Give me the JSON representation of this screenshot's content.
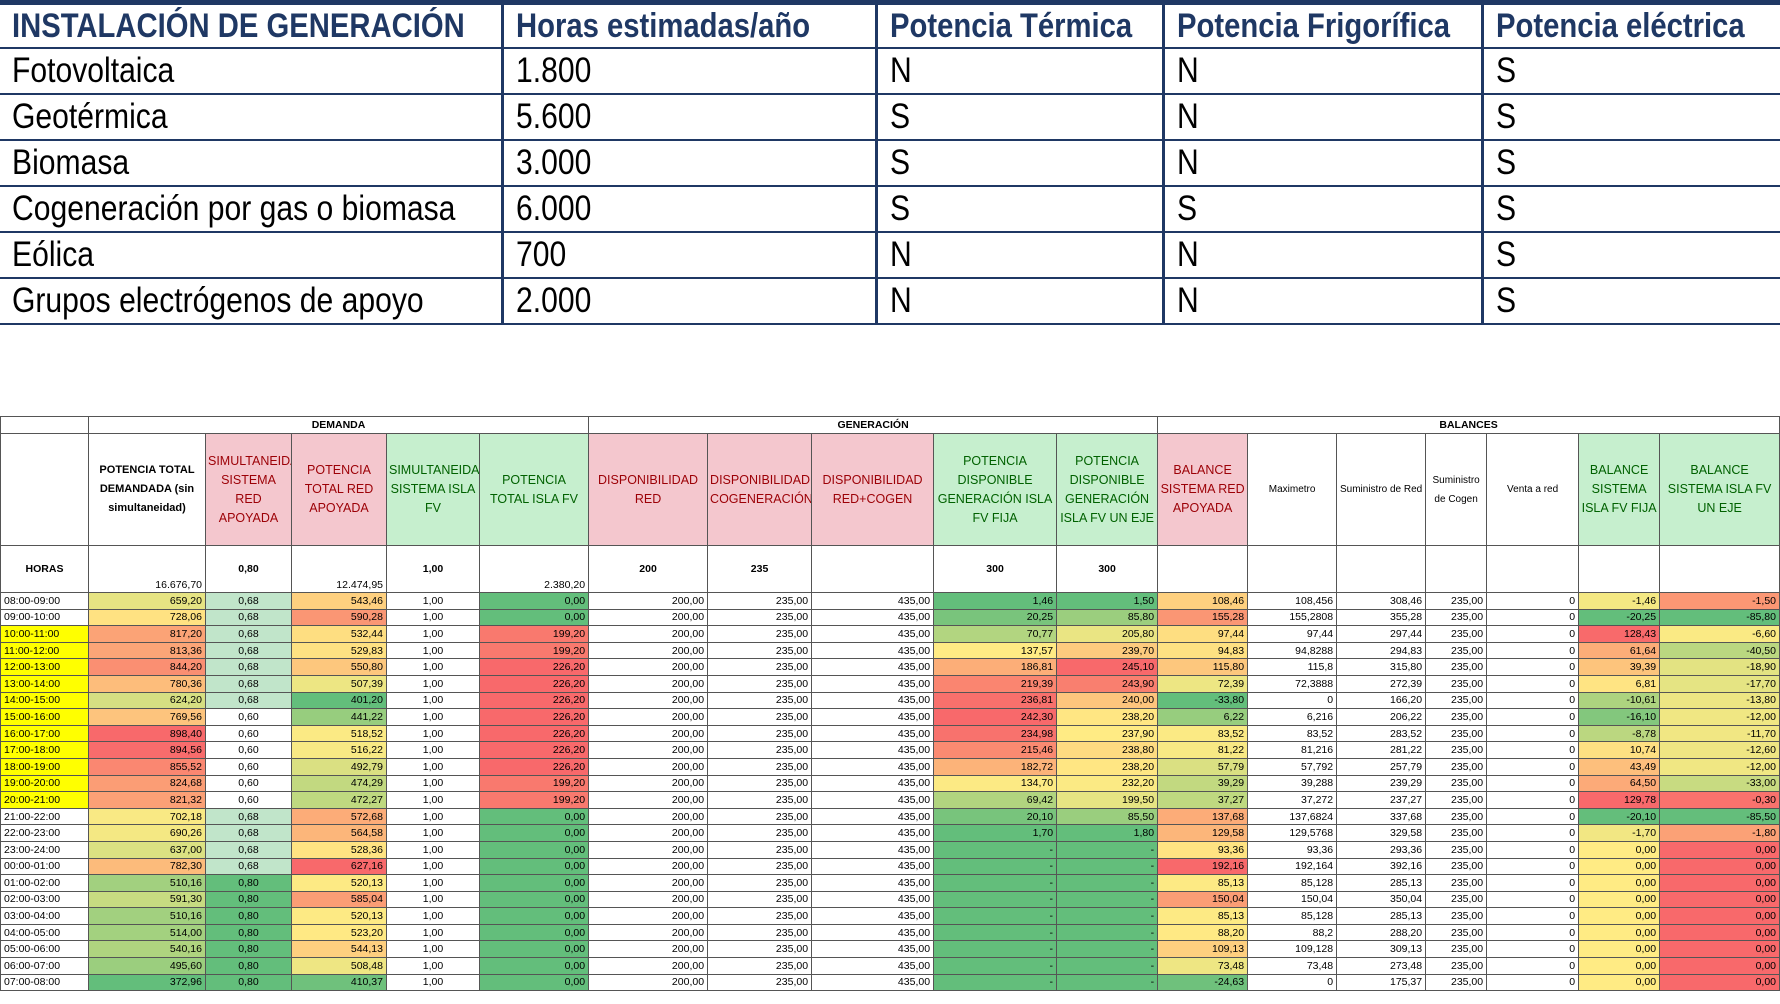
{
  "generation_table": {
    "headers": [
      "INSTALACIÓN DE GENERACIÓN",
      "Horas estimadas/año",
      "Potencia Térmica",
      "Potencia Frigorífica",
      "Potencia eléctrica"
    ],
    "rows": [
      [
        "Fotovoltaica",
        "1.800",
        "N",
        "N",
        "S"
      ],
      [
        "Geotérmica",
        "5.600",
        "S",
        "N",
        "S"
      ],
      [
        "Biomasa",
        "3.000",
        "S",
        "N",
        "S"
      ],
      [
        "Cogeneración por gas o biomasa",
        "6.000",
        "S",
        "S",
        "S"
      ],
      [
        "Eólica",
        "700",
        "N",
        "N",
        "S"
      ],
      [
        "Grupos electrógenos de apoyo",
        "2.000",
        "N",
        "N",
        "S"
      ]
    ]
  },
  "balance_table": {
    "groups": [
      "DEMANDA",
      "GENERACIÓN",
      "BALANCES"
    ],
    "headers": [
      "POTENCIA TOTAL DEMANDADA (sin simultaneidad)",
      "SIMULTANEIDAD SISTEMA RED APOYADA",
      "POTENCIA TOTAL RED APOYADA",
      "SIMULTANEIDAD SISTEMA ISLA FV",
      "POTENCIA TOTAL ISLA FV",
      "DISPONIBILIDAD RED",
      "DISPONIBILIDAD COGENERACIÓN",
      "DISPONIBILIDAD RED+COGEN",
      "POTENCIA DISPONIBLE GENERACIÓN ISLA FV FIJA",
      "POTENCIA DISPONIBLE GENERACIÓN ISLA FV UN EJE",
      "BALANCE SISTEMA RED APOYADA",
      "Maximetro",
      "Suministro de Red",
      "Suministro de Cogen",
      "Venta a red",
      "BALANCE SISTEMA ISLA FV FIJA",
      "BALANCE SISTEMA ISLA FV UN EJE"
    ],
    "params_label": "HORAS",
    "params": [
      "16.676,70",
      "0,80",
      "12.474,95",
      "1,00",
      "2.380,20",
      "200",
      "235",
      null,
      "300",
      "300",
      null,
      null,
      null,
      null,
      null,
      null,
      null
    ],
    "rows": [
      [
        "08:00-09:00",
        "659,20",
        "0,68",
        "543,46",
        "1,00",
        "0,00",
        "200,00",
        "235,00",
        "435,00",
        "1,46",
        "1,50",
        "108,46",
        "108,456",
        "308,46",
        "235,00",
        "0",
        "-1,46",
        "-1,50"
      ],
      [
        "09:00-10:00",
        "728,06",
        "0,68",
        "590,28",
        "1,00",
        "0,00",
        "200,00",
        "235,00",
        "435,00",
        "20,25",
        "85,80",
        "155,28",
        "155,2808",
        "355,28",
        "235,00",
        "0",
        "-20,25",
        "-85,80"
      ],
      [
        "10:00-11:00",
        "817,20",
        "0,68",
        "532,44",
        "1,00",
        "199,20",
        "200,00",
        "235,00",
        "435,00",
        "70,77",
        "205,80",
        "97,44",
        "97,44",
        "297,44",
        "235,00",
        "0",
        "128,43",
        "-6,60"
      ],
      [
        "11:00-12:00",
        "813,36",
        "0,68",
        "529,83",
        "1,00",
        "199,20",
        "200,00",
        "235,00",
        "435,00",
        "137,57",
        "239,70",
        "94,83",
        "94,8288",
        "294,83",
        "235,00",
        "0",
        "61,64",
        "-40,50"
      ],
      [
        "12:00-13:00",
        "844,20",
        "0,68",
        "550,80",
        "1,00",
        "226,20",
        "200,00",
        "235,00",
        "435,00",
        "186,81",
        "245,10",
        "115,80",
        "115,8",
        "315,80",
        "235,00",
        "0",
        "39,39",
        "-18,90"
      ],
      [
        "13:00-14:00",
        "780,36",
        "0,68",
        "507,39",
        "1,00",
        "226,20",
        "200,00",
        "235,00",
        "435,00",
        "219,39",
        "243,90",
        "72,39",
        "72,3888",
        "272,39",
        "235,00",
        "0",
        "6,81",
        "-17,70"
      ],
      [
        "14:00-15:00",
        "624,20",
        "0,68",
        "401,20",
        "1,00",
        "226,20",
        "200,00",
        "235,00",
        "435,00",
        "236,81",
        "240,00",
        "-33,80",
        "0",
        "166,20",
        "235,00",
        "0",
        "-10,61",
        "-13,80"
      ],
      [
        "15:00-16:00",
        "769,56",
        "0,60",
        "441,22",
        "1,00",
        "226,20",
        "200,00",
        "235,00",
        "435,00",
        "242,30",
        "238,20",
        "6,22",
        "6,216",
        "206,22",
        "235,00",
        "0",
        "-16,10",
        "-12,00"
      ],
      [
        "16:00-17:00",
        "898,40",
        "0,60",
        "518,52",
        "1,00",
        "226,20",
        "200,00",
        "235,00",
        "435,00",
        "234,98",
        "237,90",
        "83,52",
        "83,52",
        "283,52",
        "235,00",
        "0",
        "-8,78",
        "-11,70"
      ],
      [
        "17:00-18:00",
        "894,56",
        "0,60",
        "516,22",
        "1,00",
        "226,20",
        "200,00",
        "235,00",
        "435,00",
        "215,46",
        "238,80",
        "81,22",
        "81,216",
        "281,22",
        "235,00",
        "0",
        "10,74",
        "-12,60"
      ],
      [
        "18:00-19:00",
        "855,52",
        "0,60",
        "492,79",
        "1,00",
        "226,20",
        "200,00",
        "235,00",
        "435,00",
        "182,72",
        "238,20",
        "57,79",
        "57,792",
        "257,79",
        "235,00",
        "0",
        "43,49",
        "-12,00"
      ],
      [
        "19:00-20:00",
        "824,68",
        "0,60",
        "474,29",
        "1,00",
        "199,20",
        "200,00",
        "235,00",
        "435,00",
        "134,70",
        "232,20",
        "39,29",
        "39,288",
        "239,29",
        "235,00",
        "0",
        "64,50",
        "-33,00"
      ],
      [
        "20:00-21:00",
        "821,32",
        "0,60",
        "472,27",
        "1,00",
        "199,20",
        "200,00",
        "235,00",
        "435,00",
        "69,42",
        "199,50",
        "37,27",
        "37,272",
        "237,27",
        "235,00",
        "0",
        "129,78",
        "-0,30"
      ],
      [
        "21:00-22:00",
        "702,18",
        "0,68",
        "572,68",
        "1,00",
        "0,00",
        "200,00",
        "235,00",
        "435,00",
        "20,10",
        "85,50",
        "137,68",
        "137,6824",
        "337,68",
        "235,00",
        "0",
        "-20,10",
        "-85,50"
      ],
      [
        "22:00-23:00",
        "690,26",
        "0,68",
        "564,58",
        "1,00",
        "0,00",
        "200,00",
        "235,00",
        "435,00",
        "1,70",
        "1,80",
        "129,58",
        "129,5768",
        "329,58",
        "235,00",
        "0",
        "-1,70",
        "-1,80"
      ],
      [
        "23:00-24:00",
        "637,00",
        "0,68",
        "528,36",
        "1,00",
        "0,00",
        "200,00",
        "235,00",
        "435,00",
        "-",
        "-",
        "93,36",
        "93,36",
        "293,36",
        "235,00",
        "0",
        "0,00",
        "0,00"
      ],
      [
        "00:00-01:00",
        "782,30",
        "0,68",
        "627,16",
        "1,00",
        "0,00",
        "200,00",
        "235,00",
        "435,00",
        "-",
        "-",
        "192,16",
        "192,164",
        "392,16",
        "235,00",
        "0",
        "0,00",
        "0,00"
      ],
      [
        "01:00-02:00",
        "510,16",
        "0,80",
        "520,13",
        "1,00",
        "0,00",
        "200,00",
        "235,00",
        "435,00",
        "-",
        "-",
        "85,13",
        "85,128",
        "285,13",
        "235,00",
        "0",
        "0,00",
        "0,00"
      ],
      [
        "02:00-03:00",
        "591,30",
        "0,80",
        "585,04",
        "1,00",
        "0,00",
        "200,00",
        "235,00",
        "435,00",
        "-",
        "-",
        "150,04",
        "150,04",
        "350,04",
        "235,00",
        "0",
        "0,00",
        "0,00"
      ],
      [
        "03:00-04:00",
        "510,16",
        "0,80",
        "520,13",
        "1,00",
        "0,00",
        "200,00",
        "235,00",
        "435,00",
        "-",
        "-",
        "85,13",
        "85,128",
        "285,13",
        "235,00",
        "0",
        "0,00",
        "0,00"
      ],
      [
        "04:00-05:00",
        "514,00",
        "0,80",
        "523,20",
        "1,00",
        "0,00",
        "200,00",
        "235,00",
        "435,00",
        "-",
        "-",
        "88,20",
        "88,2",
        "288,20",
        "235,00",
        "0",
        "0,00",
        "0,00"
      ],
      [
        "05:00-06:00",
        "540,16",
        "0,80",
        "544,13",
        "1,00",
        "0,00",
        "200,00",
        "235,00",
        "435,00",
        "-",
        "-",
        "109,13",
        "109,128",
        "309,13",
        "235,00",
        "0",
        "0,00",
        "0,00"
      ],
      [
        "06:00-07:00",
        "495,60",
        "0,80",
        "508,48",
        "1,00",
        "0,00",
        "200,00",
        "235,00",
        "435,00",
        "-",
        "-",
        "73,48",
        "73,48",
        "273,48",
        "235,00",
        "0",
        "0,00",
        "0,00"
      ],
      [
        "07:00-08:00",
        "372,96",
        "0,80",
        "410,37",
        "1,00",
        "0,00",
        "200,00",
        "235,00",
        "435,00",
        "-",
        "-",
        "-24,63",
        "0",
        "175,37",
        "235,00",
        "0",
        "0,00",
        "0,00"
      ]
    ]
  }
}
